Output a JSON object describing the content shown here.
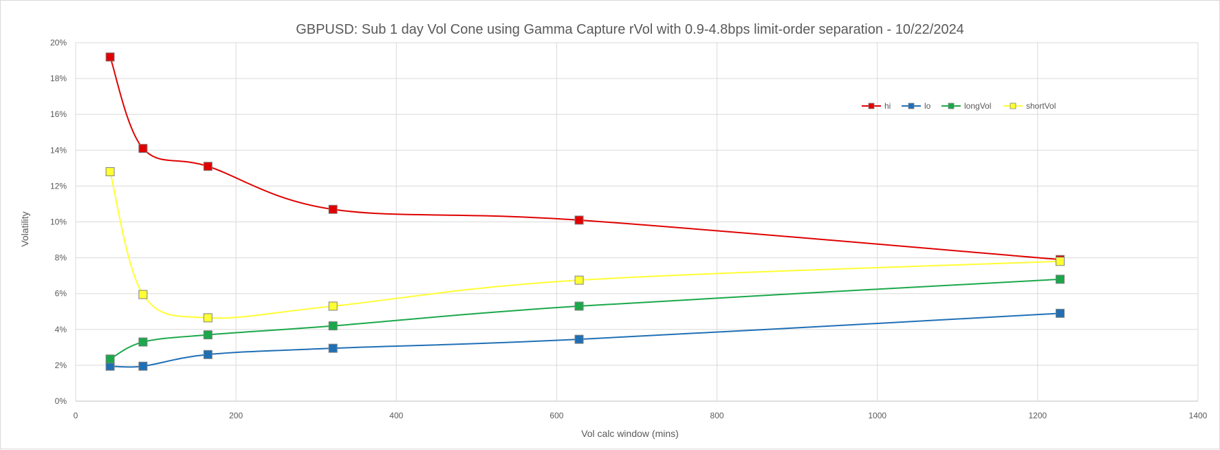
{
  "chart_data": {
    "type": "line",
    "title": "GBPUSD: Sub 1 day Vol Cone using Gamma Capture rVol with 0.9-4.8bps limit-order separation - 10/22/2024",
    "xlabel": "Vol calc window (mins)",
    "ylabel": "Volatility",
    "xlim": [
      0,
      1400
    ],
    "ylim": [
      0,
      20
    ],
    "x_ticks": [
      0,
      200,
      400,
      600,
      800,
      1000,
      1200,
      1400
    ],
    "y_ticks": [
      0,
      2,
      4,
      6,
      8,
      10,
      12,
      14,
      16,
      18,
      20
    ],
    "y_tick_suffix": "%",
    "grid": true,
    "legend": "top-right",
    "smooth": true,
    "x": [
      43,
      84,
      165,
      321,
      628,
      1228
    ],
    "series": [
      {
        "name": "hi",
        "color": "#e00000",
        "marker_fill": "#e00000",
        "values": [
          19.2,
          14.1,
          13.1,
          10.7,
          10.1,
          7.9
        ]
      },
      {
        "name": "lo",
        "color": "#1f6fb5",
        "marker_fill": "#1f6fb5",
        "values": [
          1.95,
          1.95,
          2.6,
          2.95,
          3.45,
          4.9
        ]
      },
      {
        "name": "longVol",
        "color": "#1aa84a",
        "marker_fill": "#1aa84a",
        "values": [
          2.35,
          3.3,
          3.7,
          4.2,
          5.3,
          6.8
        ]
      },
      {
        "name": "shortVol",
        "color": "#ffff33",
        "marker_fill": "#ffff33",
        "values": [
          12.8,
          5.95,
          4.65,
          5.3,
          6.75,
          7.8
        ]
      }
    ]
  }
}
